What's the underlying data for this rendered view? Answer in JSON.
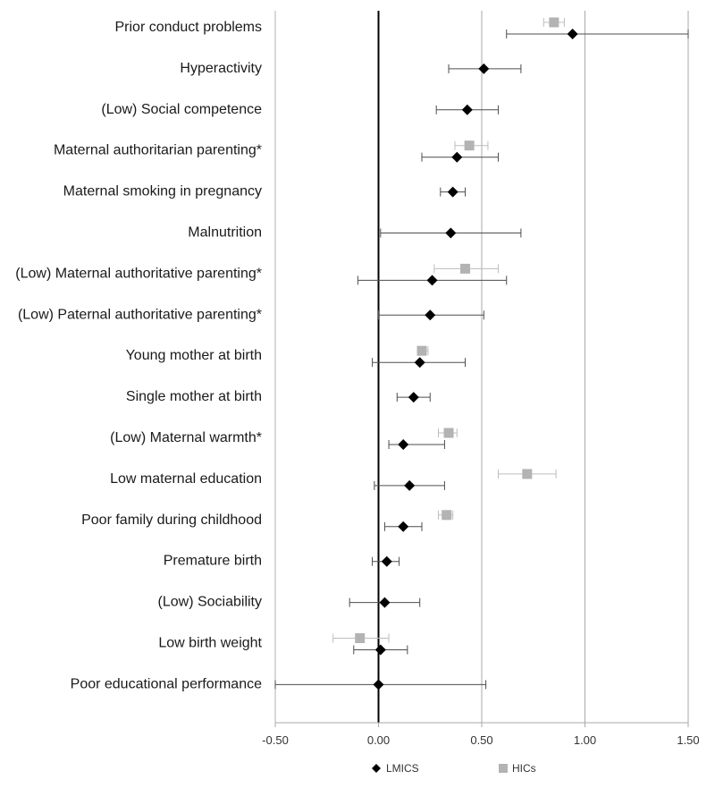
{
  "chart_data": {
    "type": "forest",
    "title": "",
    "xlabel": "",
    "ylabel": "",
    "xlim": [
      -0.5,
      1.5
    ],
    "xticks": [
      -0.5,
      0.0,
      0.5,
      1.0,
      1.5
    ],
    "xtick_labels": [
      "-0.50",
      "0.00",
      "0.50",
      "1.00",
      "1.50"
    ],
    "grid": "vertical",
    "legend_position": "bottom",
    "colors": {
      "LMICS": "#000000",
      "HICs": "#b3b3b3",
      "lmics_ci": "#4d4d4d",
      "hics_ci": "#bdbdbd"
    },
    "series": [
      {
        "name": "LMICS",
        "marker": "diamond"
      },
      {
        "name": "HICs",
        "marker": "square"
      }
    ],
    "rows": [
      {
        "label": "Prior conduct problems",
        "lmics": {
          "est": 0.94,
          "lo": 0.62,
          "hi": 1.5
        },
        "hics": {
          "est": 0.85,
          "lo": 0.8,
          "hi": 0.9
        }
      },
      {
        "label": "Hyperactivity",
        "lmics": {
          "est": 0.51,
          "lo": 0.34,
          "hi": 0.69
        },
        "hics": null
      },
      {
        "label": "(Low) Social competence",
        "lmics": {
          "est": 0.43,
          "lo": 0.28,
          "hi": 0.58
        },
        "hics": null
      },
      {
        "label": "Maternal authoritarian parenting*",
        "lmics": {
          "est": 0.38,
          "lo": 0.21,
          "hi": 0.58
        },
        "hics": {
          "est": 0.44,
          "lo": 0.37,
          "hi": 0.53
        }
      },
      {
        "label": "Maternal smoking in pregnancy",
        "lmics": {
          "est": 0.36,
          "lo": 0.3,
          "hi": 0.42
        },
        "hics": null
      },
      {
        "label": "Malnutrition",
        "lmics": {
          "est": 0.35,
          "lo": 0.01,
          "hi": 0.69
        },
        "hics": null
      },
      {
        "label": "(Low) Maternal authoritative parenting*",
        "lmics": {
          "est": 0.26,
          "lo": -0.1,
          "hi": 0.62
        },
        "hics": {
          "est": 0.42,
          "lo": 0.27,
          "hi": 0.58
        }
      },
      {
        "label": "(Low) Paternal authoritative parenting*",
        "lmics": {
          "est": 0.25,
          "lo": 0.0,
          "hi": 0.51
        },
        "hics": null
      },
      {
        "label": "Young mother at birth",
        "lmics": {
          "est": 0.2,
          "lo": -0.03,
          "hi": 0.42
        },
        "hics": {
          "est": 0.21,
          "lo": 0.19,
          "hi": 0.24
        }
      },
      {
        "label": "Single mother at birth",
        "lmics": {
          "est": 0.17,
          "lo": 0.09,
          "hi": 0.25
        },
        "hics": null
      },
      {
        "label": "(Low) Maternal warmth*",
        "lmics": {
          "est": 0.12,
          "lo": 0.05,
          "hi": 0.32
        },
        "hics": {
          "est": 0.34,
          "lo": 0.29,
          "hi": 0.38
        }
      },
      {
        "label": "Low maternal education",
        "lmics": {
          "est": 0.15,
          "lo": -0.02,
          "hi": 0.32
        },
        "hics": {
          "est": 0.72,
          "lo": 0.58,
          "hi": 0.86
        }
      },
      {
        "label": "Poor family during childhood",
        "lmics": {
          "est": 0.12,
          "lo": 0.03,
          "hi": 0.21
        },
        "hics": {
          "est": 0.33,
          "lo": 0.29,
          "hi": 0.36
        }
      },
      {
        "label": "Premature birth",
        "lmics": {
          "est": 0.04,
          "lo": -0.03,
          "hi": 0.1
        },
        "hics": null
      },
      {
        "label": "(Low) Sociability",
        "lmics": {
          "est": 0.03,
          "lo": -0.14,
          "hi": 0.2
        },
        "hics": null
      },
      {
        "label": "Low birth weight",
        "lmics": {
          "est": 0.01,
          "lo": -0.12,
          "hi": 0.14
        },
        "hics": {
          "est": -0.09,
          "lo": -0.22,
          "hi": 0.05
        }
      },
      {
        "label": "Poor educational performance",
        "lmics": {
          "est": 0.0,
          "lo": -0.5,
          "hi": 0.52
        },
        "hics": null
      }
    ]
  }
}
